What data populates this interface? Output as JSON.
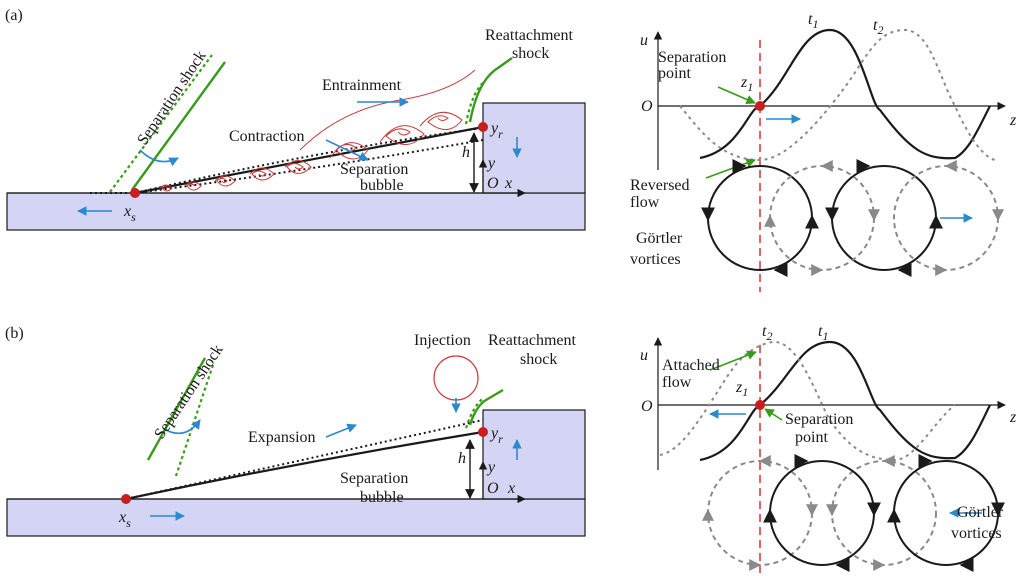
{
  "panel_a": {
    "label": "(a)",
    "separation_shock": "Separation shock",
    "entrainment": "Entrainment",
    "reattachment_1": "Reattachment",
    "reattachment_2": "shock",
    "contraction": "Contraction",
    "separation_bubble_1": "Separation",
    "separation_bubble_2": "bubble",
    "xs_main": "x",
    "xs_sub": "s",
    "yr_main": "y",
    "yr_sub": "r",
    "h": "h",
    "y": "y",
    "O": "O",
    "x": "x",
    "plot": {
      "u": "u",
      "O": "O",
      "z": "z",
      "t1_main": "t",
      "t1_sub": "1",
      "t2_main": "t",
      "t2_sub": "2",
      "z1_main": "z",
      "z1_sub": "1",
      "separation_point_1": "Separation",
      "separation_point_2": "point",
      "reversed_flow_1": "Reversed",
      "reversed_flow_2": "flow",
      "gortler_1": "Görtler",
      "gortler_2": "vortices"
    }
  },
  "panel_b": {
    "label": "(b)",
    "separation_shock": "Separation shock",
    "injection": "Injection",
    "reattachment_1": "Reattachment",
    "reattachment_2": "shock",
    "expansion": "Expansion",
    "separation_bubble_1": "Separation",
    "separation_bubble_2": "bubble",
    "xs_main": "x",
    "xs_sub": "s",
    "yr_main": "y",
    "yr_sub": "r",
    "h": "h",
    "y": "y",
    "O": "O",
    "x": "x",
    "plot": {
      "u": "u",
      "O": "O",
      "z": "z",
      "t1_main": "t",
      "t1_sub": "1",
      "t2_main": "t",
      "t2_sub": "2",
      "z1_main": "z",
      "z1_sub": "1",
      "attached_flow_1": "Attached",
      "attached_flow_2": "flow",
      "separation_point_1": "Separation",
      "separation_point_2": "point",
      "gortler_1": "Görtler",
      "gortler_2": "vortices"
    }
  },
  "colors": {
    "solid_fill": "#d4d4f4",
    "shock_green": "#3a9a1a",
    "flow_arrow_blue": "#2b8acb",
    "vortex_red": "#cc3a3a",
    "separation_point": "#c81e1e"
  }
}
